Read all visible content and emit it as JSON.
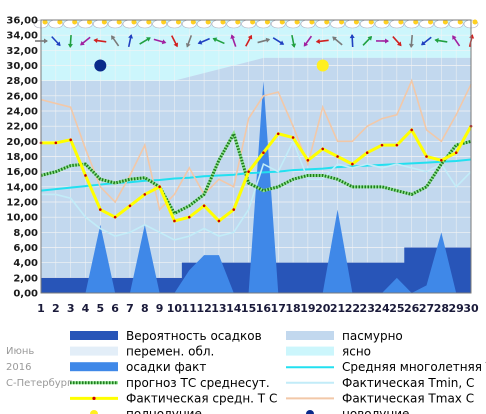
{
  "caption": {
    "month": "Июнь",
    "year": "2016",
    "city": "С-Петербург"
  },
  "colors": {
    "precip_prob": "#2855b8",
    "precip_fact": "#3f88e8",
    "overcast": "#c2d8ee",
    "variable": "#e3eef8",
    "clear": "#ccf6fc",
    "mean_multiyear": "#22e0f0",
    "forecast_mean": "#1f7a1f",
    "actual_mean": "#ffff00",
    "actual_tmin": "#c2ecf8",
    "actual_tmax": "#f2c8a8",
    "full_moon": "#ffef20",
    "new_moon": "#0a2a8a"
  },
  "legend": [
    {
      "key": "precip_prob",
      "label": "Вероятность осадков",
      "symbol": "box"
    },
    {
      "key": "overcast",
      "label": "пасмурно",
      "symbol": "box"
    },
    {
      "key": "variable",
      "label": "перемен. обл.",
      "symbol": "box"
    },
    {
      "key": "clear",
      "label": "ясно",
      "symbol": "box"
    },
    {
      "key": "precip_fact",
      "label": "осадки факт",
      "symbol": "box"
    },
    {
      "key": "mean_multiyear",
      "label": "Средняя многолетняя Т С",
      "symbol": "line"
    },
    {
      "key": "forecast_mean",
      "label": "прогноз ТС среднесут.",
      "symbol": "dotline"
    },
    {
      "key": "actual_tmin",
      "label": "Фактическая Tmin, С",
      "symbol": "line"
    },
    {
      "key": "actual_mean",
      "label": "Фактическая средн. Т С",
      "symbol": "markline"
    },
    {
      "key": "actual_tmax",
      "label": "Фактическая Tmax С",
      "symbol": "line"
    },
    {
      "key": "full_moon",
      "label": "полнолуние",
      "symbol": "dot"
    },
    {
      "key": "new_moon",
      "label": "новолуние",
      "symbol": "dot"
    }
  ],
  "chart_data": {
    "type": "line",
    "x": [
      1,
      2,
      3,
      4,
      5,
      6,
      7,
      8,
      9,
      10,
      11,
      12,
      13,
      14,
      15,
      16,
      17,
      18,
      19,
      20,
      21,
      22,
      23,
      24,
      25,
      26,
      27,
      28,
      29,
      30
    ],
    "xlim": [
      1,
      30
    ],
    "ylim": [
      0,
      36
    ],
    "y_ticks": [
      "0,00",
      "2,00",
      "4,00",
      "6,00",
      "8,00",
      "10,00",
      "12,00",
      "14,00",
      "16,00",
      "18,00",
      "20,00",
      "22,00",
      "24,00",
      "26,00",
      "28,00",
      "30,00",
      "32,00",
      "34,00",
      "36,00"
    ],
    "grid": true,
    "legend_position": "bottom",
    "series": [
      {
        "key": "precip_prob",
        "kind": "area",
        "values": [
          2,
          2,
          2,
          2,
          2,
          2,
          2,
          2,
          2,
          2,
          4,
          4,
          4,
          4,
          4,
          4,
          4,
          4,
          4,
          4,
          4,
          4,
          4,
          4,
          4,
          6,
          6,
          6,
          6,
          6
        ]
      },
      {
        "key": "precip_fact",
        "kind": "area",
        "values": [
          0,
          0,
          0,
          0,
          9,
          0,
          0,
          9,
          0,
          0,
          3,
          5,
          5,
          0,
          0,
          28,
          0,
          0,
          0,
          0,
          11,
          0,
          0,
          0,
          2,
          0,
          1,
          8,
          0,
          0
        ]
      },
      {
        "key": "mean_multiyear",
        "kind": "line",
        "values": [
          13.5,
          13.7,
          13.9,
          14.1,
          14.3,
          14.5,
          14.6,
          14.8,
          14.9,
          15.1,
          15.2,
          15.4,
          15.5,
          15.6,
          15.8,
          15.9,
          16.0,
          16.2,
          16.3,
          16.4,
          16.6,
          16.7,
          16.8,
          16.9,
          17.0,
          17.1,
          17.2,
          17.3,
          17.4,
          17.6
        ]
      },
      {
        "key": "actual_tmin",
        "kind": "line",
        "values": [
          13.0,
          13.0,
          12.5,
          10.0,
          8.5,
          7.5,
          8.0,
          9.0,
          8.0,
          7.0,
          7.5,
          8.5,
          7.5,
          8.0,
          11.0,
          17.0,
          16.0,
          20.0,
          15.0,
          15.0,
          17.0,
          16.5,
          17.0,
          16.5,
          17.0,
          16.5,
          16.0,
          17.0,
          14.0,
          16.0
        ]
      },
      {
        "key": "actual_tmax",
        "kind": "line",
        "values": [
          25.5,
          25.0,
          24.5,
          19.0,
          14.0,
          12.0,
          15.5,
          19.5,
          11.0,
          13.0,
          16.5,
          13.0,
          15.0,
          14.0,
          23.0,
          26.0,
          26.5,
          22.0,
          17.0,
          24.5,
          20.0,
          20.0,
          22.0,
          23.0,
          23.5,
          28.0,
          21.5,
          20.0,
          23.5,
          27.5
        ]
      },
      {
        "key": "forecast_mean",
        "kind": "dotline",
        "values": [
          15.5,
          16.0,
          16.8,
          17.0,
          15.0,
          14.5,
          15.0,
          15.2,
          14.0,
          10.5,
          11.5,
          13.0,
          17.5,
          21.0,
          14.5,
          13.5,
          14.0,
          15.0,
          15.5,
          15.5,
          15.0,
          14.0,
          14.0,
          14.0,
          13.5,
          13.0,
          14.0,
          17.0,
          19.5,
          20.0
        ]
      },
      {
        "key": "actual_mean",
        "kind": "markline",
        "values": [
          19.8,
          19.8,
          20.2,
          15.5,
          11.0,
          10.0,
          11.5,
          13.0,
          14.0,
          9.5,
          10.0,
          11.5,
          9.5,
          11.0,
          16.0,
          18.5,
          21.0,
          20.5,
          17.5,
          19.0,
          18.0,
          17.0,
          18.5,
          19.5,
          19.5,
          21.5,
          18.0,
          17.5,
          18.5,
          22.0
        ]
      }
    ],
    "full_moon_day": 20,
    "new_moon_day": 5
  }
}
